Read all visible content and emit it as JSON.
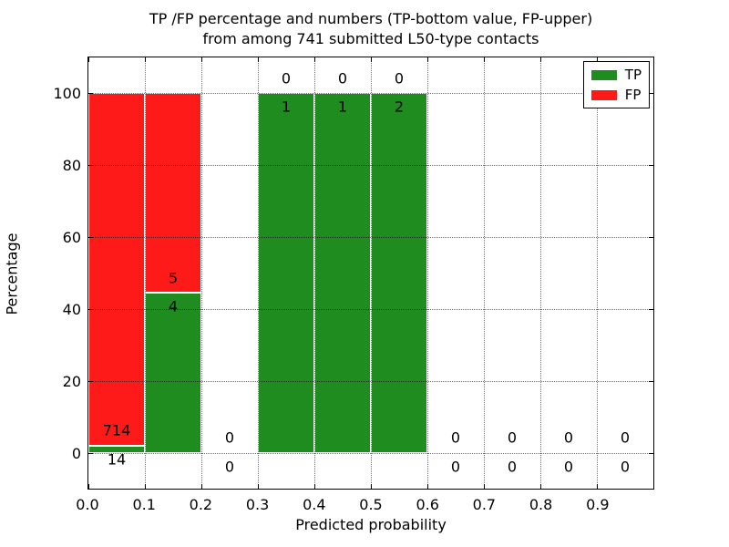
{
  "chart_data": {
    "type": "bar",
    "stacked": true,
    "title_lines": [
      "TP /FP percentage and numbers (TP-bottom value, FP-upper)",
      "from among 741 submitted L50-type contacts"
    ],
    "xlabel": "Predicted probability",
    "ylabel": "Percentage",
    "xlim": [
      0.0,
      1.0
    ],
    "ylim": [
      -10,
      110
    ],
    "xticks": [
      0.0,
      0.1,
      0.2,
      0.3,
      0.4,
      0.5,
      0.6,
      0.7,
      0.8,
      0.9
    ],
    "xtick_labels": [
      "0.0",
      "0.1",
      "0.2",
      "0.3",
      "0.4",
      "0.5",
      "0.6",
      "0.7",
      "0.8",
      "0.9"
    ],
    "yticks": [
      0,
      20,
      40,
      60,
      80,
      100
    ],
    "ytick_labels": [
      "0",
      "20",
      "40",
      "60",
      "80",
      "100"
    ],
    "grid": true,
    "total_contacts": 741,
    "series": [
      {
        "name": "TP",
        "color": "#1e8c1e"
      },
      {
        "name": "FP",
        "color": "#ff1a1a"
      }
    ],
    "legend_position": "upper right",
    "bins": [
      {
        "range": [
          0.0,
          0.1
        ],
        "tp": 14,
        "fp": 714
      },
      {
        "range": [
          0.1,
          0.2
        ],
        "tp": 4,
        "fp": 5
      },
      {
        "range": [
          0.2,
          0.3
        ],
        "tp": 0,
        "fp": 0
      },
      {
        "range": [
          0.3,
          0.4
        ],
        "tp": 1,
        "fp": 0
      },
      {
        "range": [
          0.4,
          0.5
        ],
        "tp": 1,
        "fp": 0
      },
      {
        "range": [
          0.5,
          0.6
        ],
        "tp": 2,
        "fp": 0
      },
      {
        "range": [
          0.6,
          0.7
        ],
        "tp": 0,
        "fp": 0
      },
      {
        "range": [
          0.7,
          0.8
        ],
        "tp": 0,
        "fp": 0
      },
      {
        "range": [
          0.8,
          0.9
        ],
        "tp": 0,
        "fp": 0
      },
      {
        "range": [
          0.9,
          1.0
        ],
        "tp": 0,
        "fp": 0
      }
    ]
  }
}
